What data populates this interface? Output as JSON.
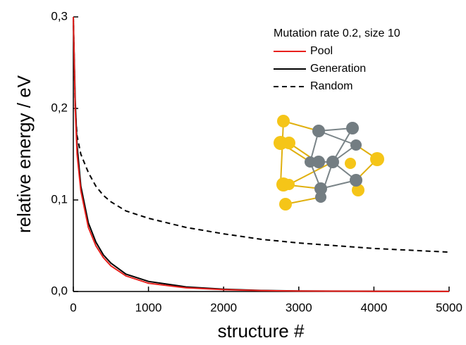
{
  "chart_data": {
    "type": "line",
    "x_label": "structure #",
    "y_label": "relative energy / eV",
    "legend_title": "Mutation rate 0.2, size 10",
    "legend": "upper right",
    "x": [
      0,
      25,
      50,
      100,
      200,
      300,
      400,
      500,
      700,
      1000,
      1500,
      2000,
      2500,
      3000,
      4000,
      5000
    ],
    "series": [
      {
        "name": "Pool",
        "color": "#e8201c",
        "style": "solid",
        "values": [
          0.3,
          0.2,
          0.15,
          0.11,
          0.07,
          0.05,
          0.037,
          0.028,
          0.017,
          0.009,
          0.004,
          0.002,
          0.001,
          0.0005,
          0.0002,
          0.0001
        ]
      },
      {
        "name": "Generation",
        "color": "#000000",
        "style": "solid",
        "values": [
          0.3,
          0.21,
          0.16,
          0.115,
          0.075,
          0.054,
          0.04,
          0.031,
          0.019,
          0.011,
          0.005,
          0.0025,
          0.0012,
          0.0006,
          0.0003,
          0.0001
        ]
      },
      {
        "name": "Random",
        "color": "#000000",
        "style": "dashed",
        "values": [
          0.3,
          0.2,
          0.17,
          0.15,
          0.13,
          0.115,
          0.105,
          0.098,
          0.088,
          0.08,
          0.07,
          0.063,
          0.057,
          0.053,
          0.047,
          0.043
        ]
      }
    ],
    "xlim": [
      0,
      5000
    ],
    "xticks": [
      0,
      1000,
      2000,
      3000,
      4000,
      5000
    ],
    "ylim": [
      0,
      0.3
    ],
    "yticks": [
      {
        "value": 0,
        "label": "0,0"
      },
      {
        "value": 0.1,
        "label": "0,1"
      },
      {
        "value": 0.2,
        "label": "0,2"
      },
      {
        "value": 0.3,
        "label": "0,3"
      }
    ]
  }
}
